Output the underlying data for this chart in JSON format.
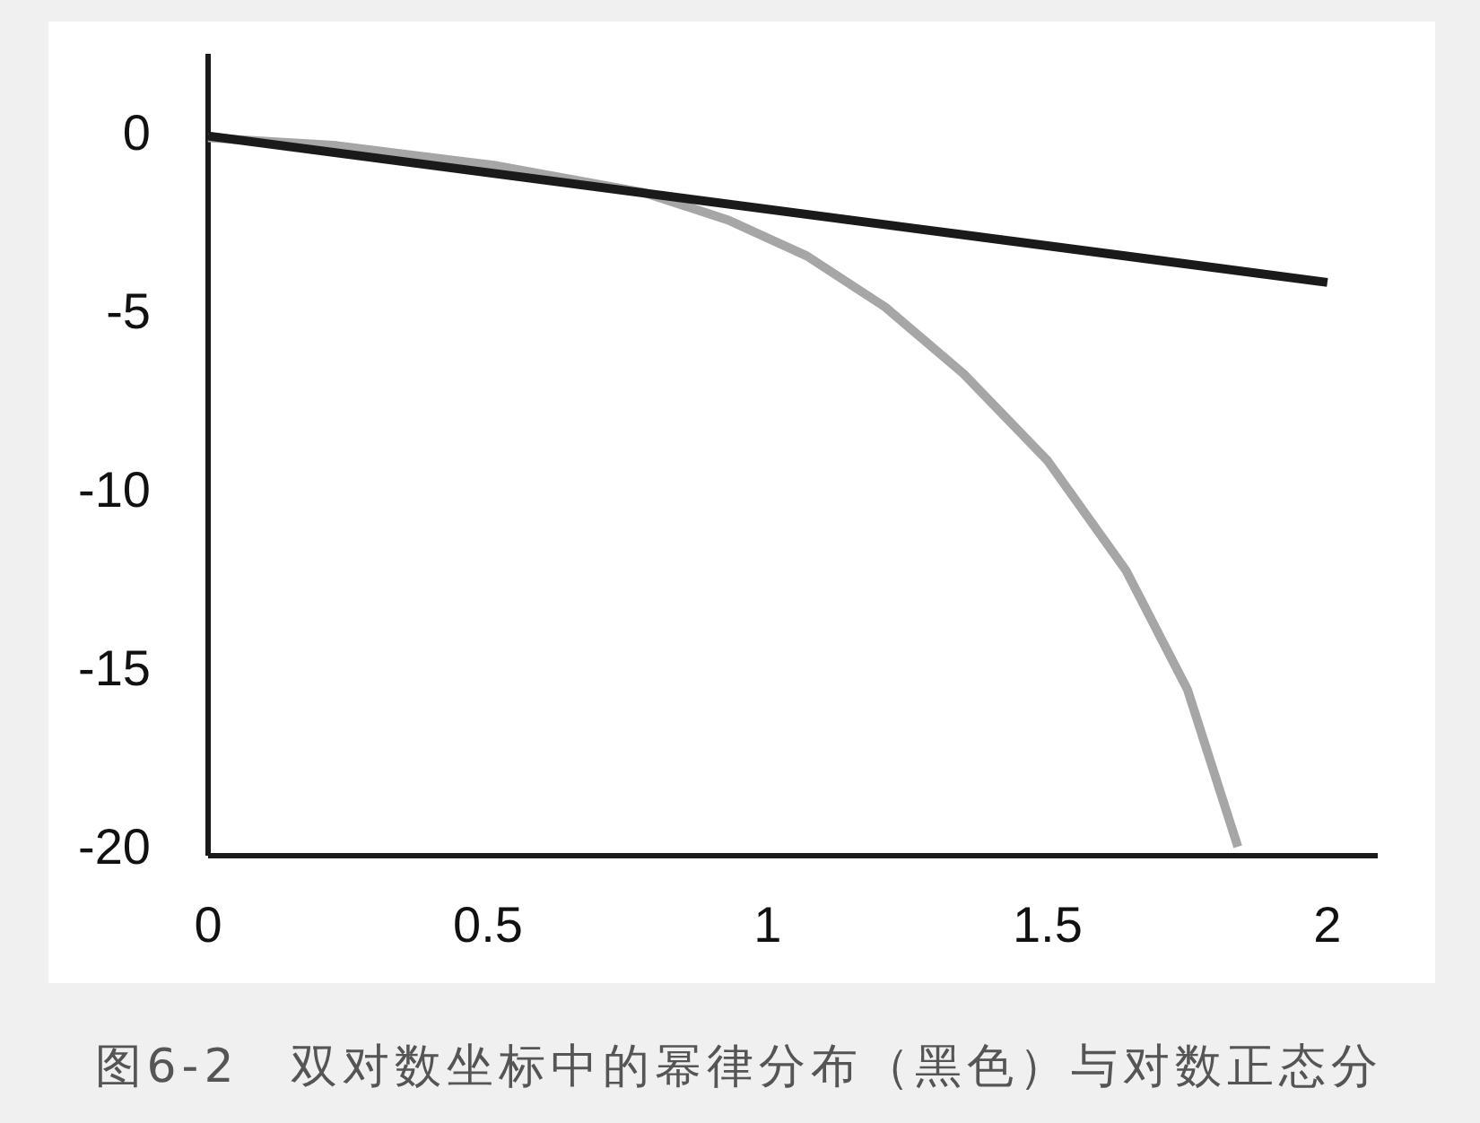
{
  "chart_data": {
    "type": "line",
    "xlim": [
      0,
      2.09
    ],
    "ylim": [
      -20.25,
      2.2
    ],
    "xticks": [
      0,
      0.5,
      1,
      1.5,
      2
    ],
    "yticks": [
      0,
      -5,
      -10,
      -15,
      -20
    ],
    "series": [
      {
        "color": "#1a1a1a",
        "x": [
          0,
          2
        ],
        "values": [
          -0.1,
          -4.2
        ]
      },
      {
        "color": "#a6a6a6",
        "x": [
          0,
          0.23,
          0.51,
          0.78,
          0.93,
          1.07,
          1.21,
          1.35,
          1.5,
          1.64,
          1.75,
          1.84
        ],
        "values": [
          -0.15,
          -0.37,
          -0.92,
          -1.69,
          -2.46,
          -3.46,
          -4.89,
          -6.76,
          -9.19,
          -12.26,
          -15.6,
          -20
        ]
      }
    ],
    "annotations": [
      "图6-2　双对数坐标中的幂律分布（黑色）与对数正态分"
    ]
  }
}
